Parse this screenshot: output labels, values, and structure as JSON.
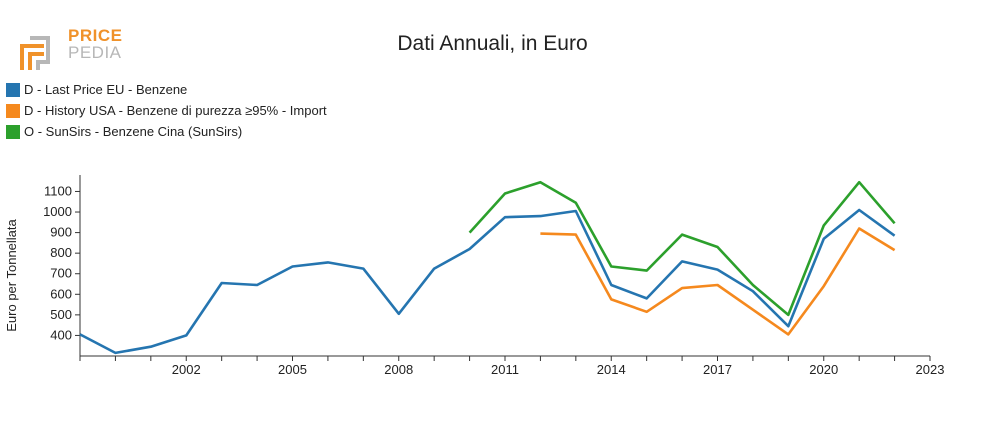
{
  "logo": {
    "line1": "PRICE",
    "line2": "PEDIA",
    "colors": {
      "accent": "#f0922a",
      "muted": "#b7b7b7"
    }
  },
  "chart_data": {
    "type": "line",
    "title": "Dati Annuali, in Euro",
    "xlabel": "",
    "ylabel": "Euro per Tonnellata",
    "xlim": [
      1999,
      2023
    ],
    "ylim": [
      300,
      1180
    ],
    "yticks": [
      400,
      500,
      600,
      700,
      800,
      900,
      1000,
      1100
    ],
    "xticks": [
      2002,
      2005,
      2008,
      2011,
      2014,
      2017,
      2020,
      2023
    ],
    "grid": false,
    "legend_position": "top-left",
    "series": [
      {
        "name": "D - Last Price EU - Benzene",
        "color": "#2575b0",
        "points": [
          [
            1999,
            405
          ],
          [
            2000,
            315
          ],
          [
            2001,
            345
          ],
          [
            2002,
            400
          ],
          [
            2003,
            655
          ],
          [
            2004,
            645
          ],
          [
            2005,
            735
          ],
          [
            2006,
            755
          ],
          [
            2007,
            725
          ],
          [
            2008,
            505
          ],
          [
            2009,
            725
          ],
          [
            2010,
            820
          ],
          [
            2011,
            975
          ],
          [
            2012,
            980
          ],
          [
            2013,
            1005
          ],
          [
            2014,
            645
          ],
          [
            2015,
            580
          ],
          [
            2016,
            760
          ],
          [
            2017,
            720
          ],
          [
            2018,
            615
          ],
          [
            2019,
            445
          ],
          [
            2020,
            870
          ],
          [
            2021,
            1010
          ],
          [
            2022,
            885
          ]
        ]
      },
      {
        "name": "D - History USA - Benzene di purezza ≥95% - Import",
        "color": "#f5891e",
        "points": [
          [
            2012,
            895
          ],
          [
            2013,
            890
          ],
          [
            2014,
            575
          ],
          [
            2015,
            515
          ],
          [
            2016,
            630
          ],
          [
            2017,
            645
          ],
          [
            2018,
            525
          ],
          [
            2019,
            405
          ],
          [
            2020,
            640
          ],
          [
            2021,
            920
          ],
          [
            2022,
            815
          ]
        ]
      },
      {
        "name": "O - SunSirs - Benzene Cina (SunSirs)",
        "color": "#2ca02c",
        "points": [
          [
            2010,
            900
          ],
          [
            2011,
            1090
          ],
          [
            2012,
            1145
          ],
          [
            2013,
            1045
          ],
          [
            2014,
            735
          ],
          [
            2015,
            715
          ],
          [
            2016,
            890
          ],
          [
            2017,
            830
          ],
          [
            2018,
            645
          ],
          [
            2019,
            500
          ],
          [
            2020,
            935
          ],
          [
            2021,
            1145
          ],
          [
            2022,
            945
          ]
        ]
      }
    ]
  }
}
